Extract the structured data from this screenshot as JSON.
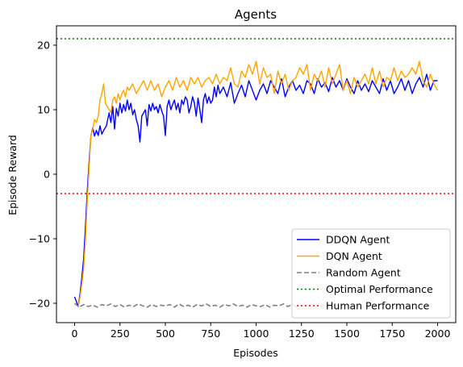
{
  "chart_data": {
    "type": "line",
    "title": "Agents",
    "xlabel": "Episodes",
    "ylabel": "Episode Reward",
    "xlim": [
      -100,
      2100
    ],
    "ylim": [
      -23,
      23
    ],
    "x_ticks": [
      0,
      250,
      500,
      750,
      1000,
      1250,
      1500,
      1750,
      2000
    ],
    "y_ticks": [
      -20,
      -10,
      0,
      10,
      20
    ],
    "grid": false,
    "legend_position": "lower-right",
    "series": [
      {
        "name": "DDQN Agent",
        "color": "#0000ff",
        "style": "solid",
        "x": [
          0,
          20,
          30,
          40,
          50,
          60,
          70,
          80,
          90,
          100,
          110,
          120,
          130,
          140,
          150,
          160,
          175,
          190,
          200,
          210,
          220,
          230,
          240,
          250,
          260,
          270,
          280,
          290,
          300,
          310,
          320,
          330,
          340,
          350,
          360,
          370,
          380,
          390,
          400,
          410,
          420,
          430,
          440,
          450,
          460,
          470,
          480,
          490,
          500,
          510,
          520,
          530,
          540,
          550,
          560,
          570,
          580,
          590,
          600,
          610,
          620,
          630,
          640,
          650,
          660,
          670,
          680,
          690,
          700,
          710,
          720,
          730,
          740,
          750,
          760,
          770,
          780,
          790,
          800,
          820,
          840,
          860,
          880,
          900,
          920,
          940,
          960,
          980,
          1000,
          1020,
          1040,
          1060,
          1080,
          1100,
          1120,
          1140,
          1160,
          1180,
          1200,
          1220,
          1240,
          1260,
          1280,
          1300,
          1320,
          1340,
          1360,
          1380,
          1400,
          1420,
          1440,
          1460,
          1480,
          1500,
          1520,
          1540,
          1560,
          1580,
          1600,
          1620,
          1640,
          1660,
          1680,
          1700,
          1720,
          1740,
          1760,
          1780,
          1800,
          1820,
          1840,
          1860,
          1880,
          1900,
          1920,
          1940,
          1960,
          1980,
          2000
        ],
        "y": [
          -19.0,
          -20.5,
          -18.5,
          -16.0,
          -13.0,
          -8.0,
          -2.5,
          2.0,
          6.0,
          7.2,
          5.9,
          6.8,
          6.0,
          7.5,
          6.2,
          6.8,
          7.5,
          9.5,
          8.0,
          10.5,
          7.0,
          10.2,
          9.0,
          11.0,
          9.5,
          10.8,
          9.8,
          11.5,
          10.0,
          11.0,
          9.2,
          10.0,
          8.5,
          7.5,
          5.0,
          9.0,
          9.5,
          10.0,
          7.5,
          10.8,
          9.8,
          11.0,
          10.0,
          10.5,
          9.5,
          10.8,
          9.8,
          9.0,
          6.0,
          10.5,
          11.5,
          10.0,
          10.8,
          11.5,
          10.0,
          11.0,
          9.5,
          11.5,
          10.8,
          12.0,
          11.5,
          9.5,
          10.5,
          12.0,
          11.0,
          9.0,
          11.8,
          10.0,
          8.0,
          11.5,
          12.5,
          11.0,
          12.0,
          11.0,
          11.5,
          13.5,
          12.0,
          13.8,
          12.5,
          13.5,
          12.0,
          14.2,
          11.0,
          12.5,
          13.8,
          12.0,
          14.5,
          13.0,
          11.5,
          13.0,
          14.0,
          12.5,
          14.5,
          13.5,
          12.5,
          14.8,
          12.0,
          13.5,
          14.5,
          13.0,
          13.8,
          12.5,
          14.5,
          14.0,
          12.5,
          14.8,
          13.5,
          14.2,
          12.8,
          15.0,
          13.5,
          14.5,
          13.0,
          14.8,
          13.5,
          12.5,
          14.5,
          13.0,
          14.0,
          12.8,
          14.5,
          13.5,
          12.5,
          14.8,
          13.0,
          14.5,
          12.5,
          13.5,
          14.8,
          13.0,
          14.5,
          12.5,
          14.0,
          15.0,
          13.5,
          15.5,
          13.0,
          14.5,
          14.5
        ]
      },
      {
        "name": "DQN Agent",
        "color": "#ffa500",
        "style": "solid",
        "x": [
          0,
          20,
          30,
          40,
          50,
          60,
          70,
          80,
          90,
          100,
          110,
          120,
          130,
          140,
          150,
          160,
          170,
          180,
          190,
          200,
          210,
          220,
          230,
          240,
          250,
          260,
          270,
          280,
          290,
          300,
          320,
          340,
          360,
          380,
          400,
          420,
          440,
          460,
          480,
          500,
          520,
          540,
          560,
          580,
          600,
          620,
          640,
          660,
          680,
          700,
          720,
          740,
          760,
          780,
          800,
          820,
          840,
          860,
          880,
          900,
          920,
          940,
          960,
          980,
          1000,
          1020,
          1040,
          1060,
          1080,
          1100,
          1120,
          1140,
          1160,
          1180,
          1200,
          1220,
          1240,
          1260,
          1280,
          1300,
          1320,
          1340,
          1360,
          1380,
          1400,
          1420,
          1440,
          1460,
          1480,
          1500,
          1520,
          1540,
          1560,
          1580,
          1600,
          1620,
          1640,
          1660,
          1680,
          1700,
          1720,
          1740,
          1760,
          1780,
          1800,
          1820,
          1840,
          1860,
          1880,
          1900,
          1920,
          1940,
          1960,
          1980,
          2000
        ],
        "y": [
          -20.0,
          -20.5,
          -19.0,
          -17.0,
          -14.5,
          -10.0,
          -4.0,
          1.0,
          6.0,
          7.0,
          8.5,
          8.0,
          9.0,
          11.5,
          12.5,
          14.0,
          11.0,
          10.5,
          10.0,
          9.5,
          11.5,
          12.0,
          11.0,
          12.5,
          11.5,
          12.5,
          13.0,
          12.0,
          13.5,
          13.0,
          14.0,
          12.5,
          13.5,
          14.5,
          13.0,
          14.5,
          13.0,
          14.0,
          12.0,
          13.5,
          14.5,
          13.0,
          15.0,
          13.5,
          14.5,
          13.0,
          15.0,
          14.0,
          15.0,
          13.5,
          14.5,
          15.0,
          14.0,
          15.5,
          14.0,
          15.0,
          14.5,
          16.5,
          14.0,
          13.5,
          16.0,
          15.0,
          17.0,
          15.5,
          17.5,
          14.0,
          16.5,
          15.0,
          15.5,
          12.5,
          16.0,
          14.0,
          15.5,
          13.0,
          14.5,
          15.0,
          16.5,
          15.5,
          17.0,
          13.0,
          15.5,
          14.5,
          16.0,
          13.5,
          16.5,
          14.0,
          15.5,
          17.0,
          13.0,
          14.5,
          12.5,
          15.0,
          13.5,
          14.5,
          15.5,
          14.0,
          16.5,
          14.0,
          16.0,
          13.5,
          15.0,
          14.5,
          16.5,
          14.5,
          16.0,
          15.0,
          15.5,
          16.5,
          15.5,
          17.5,
          14.5,
          13.5,
          15.5,
          14.0,
          13.0
        ]
      },
      {
        "name": "Random Agent",
        "color": "#808080",
        "style": "dashed",
        "x": [
          0,
          25,
          50,
          75,
          100,
          125,
          150,
          175,
          200,
          225,
          250,
          275,
          300,
          325,
          350,
          375,
          400,
          425,
          450,
          475,
          500,
          525,
          550,
          575,
          600,
          625,
          650,
          675,
          700,
          725,
          750,
          775,
          800,
          825,
          850,
          875,
          900,
          925,
          950,
          975,
          1000,
          1025,
          1050,
          1075,
          1100,
          1125,
          1150,
          1175,
          1200,
          1225,
          1250,
          1275,
          1300,
          1325,
          1350,
          1375,
          1400,
          1425,
          1450,
          1475,
          1500
        ],
        "y": [
          -20.0,
          -20.6,
          -20.2,
          -20.5,
          -20.3,
          -20.6,
          -20.2,
          -20.4,
          -20.1,
          -20.5,
          -20.2,
          -20.6,
          -20.3,
          -20.5,
          -20.1,
          -20.4,
          -20.6,
          -20.2,
          -20.5,
          -20.3,
          -20.4,
          -20.2,
          -20.6,
          -20.1,
          -20.5,
          -20.3,
          -20.6,
          -20.2,
          -20.4,
          -20.1,
          -20.5,
          -20.3,
          -20.6,
          -20.2,
          -20.4,
          -20.1,
          -20.5,
          -20.3,
          -20.6,
          -20.2,
          -20.4,
          -20.5,
          -20.2,
          -20.6,
          -20.3,
          -20.4,
          -20.1,
          -20.5,
          -20.2,
          -20.6,
          -20.3,
          -20.5,
          -20.2,
          -20.4,
          -20.6,
          -20.3,
          -20.5,
          -20.2,
          -20.4,
          -20.3,
          -20.5
        ]
      }
    ],
    "reference_lines": [
      {
        "name": "Optimal Performance",
        "y": 21,
        "color": "#008000",
        "style": "dotted"
      },
      {
        "name": "Human Performance",
        "y": -3,
        "color": "#ff0000",
        "style": "dotted"
      }
    ]
  }
}
